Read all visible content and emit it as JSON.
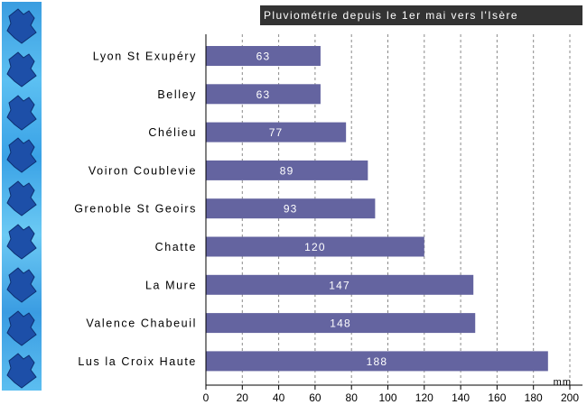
{
  "chart_data": {
    "type": "bar",
    "orientation": "horizontal",
    "title": "Pluviométrie depuis le 1er mai vers l'Isère",
    "categories": [
      "Lyon St Exupéry",
      "Belley",
      "Chélieu",
      "Voiron Coublevie",
      "Grenoble St Geoirs",
      "Chatte",
      "La Mure",
      "Valence Chabeuil",
      "Lus la Croix Haute"
    ],
    "values": [
      63,
      63,
      77,
      89,
      93,
      120,
      147,
      148,
      188
    ],
    "xunit": "mm",
    "xlim": [
      0,
      200
    ],
    "xticks": [
      0,
      20,
      40,
      60,
      80,
      100,
      120,
      140,
      160,
      180,
      200
    ],
    "grid": "vertical dashed",
    "bar_color": "#6464a0"
  }
}
